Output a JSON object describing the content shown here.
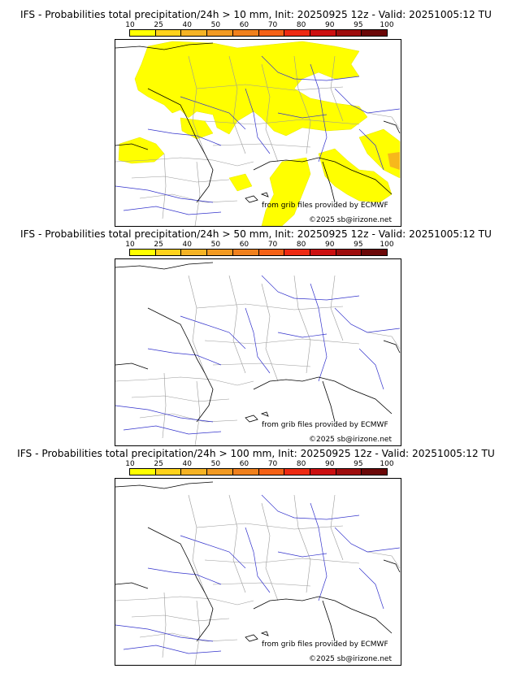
{
  "scale": {
    "labels": [
      "10",
      "25",
      "40",
      "50",
      "60",
      "70",
      "80",
      "90",
      "95",
      "100"
    ],
    "colors": [
      "#ffff00",
      "#ffd21a",
      "#f5b324",
      "#f29a22",
      "#f0801c",
      "#f56116",
      "#ee2a12",
      "#cc0f10",
      "#9e0c0c",
      "#6b0707"
    ]
  },
  "panels": [
    {
      "title": "IFS - Probabilities total precipitation/24h > 10 mm, Init: 20250925 12z - Valid: 20251005:12 TU",
      "credit": "from grib files provided by ECMWF",
      "copyright": "©2025 sb@irizone.net"
    },
    {
      "title": "IFS - Probabilities total precipitation/24h > 50 mm, Init: 20250925 12z - Valid: 20251005:12 TU",
      "credit": "from grib files provided by ECMWF",
      "copyright": "©2025 sb@irizone.net"
    },
    {
      "title": "IFS - Probabilities total precipitation/24h > 100 mm, Init: 20250925 12z - Valid: 20251005:12 TU",
      "credit": "from grib files provided by ECMWF",
      "copyright": "©2025 sb@irizone.net"
    }
  ]
}
